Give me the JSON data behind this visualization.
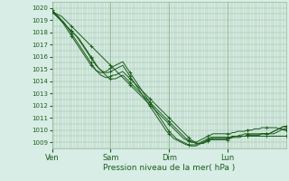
{
  "title": "",
  "xlabel": "Pression niveau de la mer( hPa )",
  "ylabel": "",
  "bg_color": "#d8ede6",
  "grid_color": "#99bb99",
  "line_color": "#1a5c1a",
  "marker_color": "#1a5c1a",
  "ylim": [
    1008.5,
    1020.5
  ],
  "yticks": [
    1009,
    1010,
    1011,
    1012,
    1013,
    1014,
    1015,
    1016,
    1017,
    1018,
    1019,
    1020
  ],
  "day_labels": [
    "Ven",
    "Sam",
    "Dim",
    "Lun"
  ],
  "day_positions": [
    0,
    48,
    96,
    144
  ],
  "xlim": [
    0,
    192
  ],
  "n_points": 97,
  "lines": [
    [
      1019.7,
      1019.6,
      1019.5,
      1019.4,
      1019.3,
      1019.1,
      1018.9,
      1018.7,
      1018.5,
      1018.3,
      1018.1,
      1017.9,
      1017.7,
      1017.5,
      1017.3,
      1017.1,
      1016.9,
      1016.7,
      1016.5,
      1016.3,
      1016.1,
      1015.9,
      1015.7,
      1015.5,
      1015.3,
      1015.1,
      1014.9,
      1014.7,
      1014.5,
      1014.3,
      1014.1,
      1013.9,
      1013.7,
      1013.5,
      1013.3,
      1013.1,
      1012.9,
      1012.7,
      1012.5,
      1012.3,
      1012.1,
      1011.9,
      1011.7,
      1011.5,
      1011.3,
      1011.1,
      1010.9,
      1010.7,
      1010.5,
      1010.3,
      1010.1,
      1009.9,
      1009.7,
      1009.5,
      1009.3,
      1009.2,
      1009.1,
      1009.0,
      1009.0,
      1009.0,
      1009.1,
      1009.2,
      1009.3,
      1009.4,
      1009.5,
      1009.6,
      1009.7,
      1009.7,
      1009.7,
      1009.7,
      1009.7,
      1009.7,
      1009.7,
      1009.7,
      1009.8,
      1009.8,
      1009.9,
      1009.9,
      1009.9,
      1009.9,
      1010.0,
      1010.0,
      1010.0,
      1010.1,
      1010.1,
      1010.1,
      1010.2,
      1010.2,
      1010.2,
      1010.2,
      1010.2,
      1010.2,
      1010.2,
      1010.1,
      1010.1,
      1010.0,
      1010.0
    ],
    [
      1019.7,
      1019.5,
      1019.3,
      1019.1,
      1018.9,
      1018.7,
      1018.5,
      1018.3,
      1018.1,
      1017.9,
      1017.7,
      1017.5,
      1017.2,
      1016.9,
      1016.6,
      1016.3,
      1016.0,
      1015.7,
      1015.4,
      1015.1,
      1014.9,
      1014.7,
      1014.5,
      1014.3,
      1014.2,
      1014.2,
      1014.2,
      1014.3,
      1014.4,
      1014.5,
      1014.3,
      1014.1,
      1013.9,
      1013.7,
      1013.5,
      1013.3,
      1013.1,
      1012.9,
      1012.7,
      1012.5,
      1012.3,
      1012.1,
      1011.9,
      1011.7,
      1011.5,
      1011.3,
      1011.1,
      1010.9,
      1010.7,
      1010.5,
      1010.3,
      1010.1,
      1009.9,
      1009.7,
      1009.5,
      1009.3,
      1009.2,
      1009.1,
      1009.0,
      1008.9,
      1008.9,
      1008.9,
      1009.0,
      1009.1,
      1009.2,
      1009.3,
      1009.4,
      1009.4,
      1009.4,
      1009.4,
      1009.4,
      1009.4,
      1009.4,
      1009.4,
      1009.5,
      1009.5,
      1009.5,
      1009.5,
      1009.5,
      1009.5,
      1009.5,
      1009.5,
      1009.5,
      1009.5,
      1009.5,
      1009.5,
      1009.5,
      1009.5,
      1009.5,
      1009.5,
      1009.5,
      1009.5,
      1009.5,
      1009.5,
      1009.5,
      1009.5,
      1009.5
    ],
    [
      1019.8,
      1019.6,
      1019.4,
      1019.2,
      1019.0,
      1018.8,
      1018.5,
      1018.2,
      1017.9,
      1017.6,
      1017.3,
      1017.0,
      1016.7,
      1016.4,
      1016.1,
      1015.8,
      1015.5,
      1015.2,
      1014.9,
      1014.7,
      1014.5,
      1014.4,
      1014.3,
      1014.3,
      1014.4,
      1014.5,
      1014.5,
      1014.6,
      1014.7,
      1014.8,
      1014.6,
      1014.4,
      1014.2,
      1014.0,
      1013.8,
      1013.6,
      1013.4,
      1013.2,
      1013.0,
      1012.8,
      1012.6,
      1012.4,
      1012.2,
      1012.0,
      1011.8,
      1011.6,
      1011.4,
      1011.2,
      1011.0,
      1010.8,
      1010.6,
      1010.4,
      1010.2,
      1010.0,
      1009.8,
      1009.6,
      1009.4,
      1009.2,
      1009.1,
      1009.0,
      1008.9,
      1008.9,
      1008.9,
      1009.0,
      1009.1,
      1009.2,
      1009.3,
      1009.3,
      1009.3,
      1009.3,
      1009.3,
      1009.3,
      1009.3,
      1009.4,
      1009.4,
      1009.5,
      1009.5,
      1009.6,
      1009.6,
      1009.7,
      1009.7,
      1009.7,
      1009.7,
      1009.7,
      1009.7,
      1009.7,
      1009.7,
      1009.7,
      1009.7,
      1009.7,
      1009.7,
      1009.7,
      1009.8,
      1009.9,
      1010.0,
      1010.1,
      1010.1
    ],
    [
      1019.7,
      1019.5,
      1019.3,
      1019.1,
      1018.9,
      1018.7,
      1018.5,
      1018.3,
      1018.1,
      1017.9,
      1017.7,
      1017.4,
      1017.1,
      1016.8,
      1016.5,
      1016.2,
      1015.9,
      1015.6,
      1015.3,
      1015.1,
      1014.9,
      1014.8,
      1014.7,
      1014.7,
      1014.8,
      1014.9,
      1015.0,
      1015.1,
      1015.2,
      1015.3,
      1015.0,
      1014.7,
      1014.4,
      1014.1,
      1013.8,
      1013.5,
      1013.2,
      1012.9,
      1012.6,
      1012.3,
      1012.0,
      1011.7,
      1011.4,
      1011.1,
      1010.8,
      1010.5,
      1010.2,
      1009.9,
      1009.7,
      1009.5,
      1009.3,
      1009.2,
      1009.1,
      1009.0,
      1008.9,
      1008.8,
      1008.8,
      1008.8,
      1008.8,
      1008.8,
      1008.9,
      1009.0,
      1009.1,
      1009.2,
      1009.3,
      1009.4,
      1009.4,
      1009.4,
      1009.4,
      1009.4,
      1009.4,
      1009.4,
      1009.4,
      1009.4,
      1009.5,
      1009.5,
      1009.5,
      1009.5,
      1009.5,
      1009.5,
      1009.6,
      1009.6,
      1009.6,
      1009.6,
      1009.6,
      1009.6,
      1009.7,
      1009.7,
      1009.7,
      1009.7,
      1009.8,
      1009.9,
      1010.0,
      1010.1,
      1010.2,
      1010.3,
      1010.3
    ],
    [
      1019.8,
      1019.6,
      1019.4,
      1019.2,
      1018.9,
      1018.6,
      1018.3,
      1018.0,
      1017.7,
      1017.4,
      1017.1,
      1016.8,
      1016.5,
      1016.2,
      1015.9,
      1015.6,
      1015.3,
      1015.1,
      1014.9,
      1014.8,
      1014.7,
      1014.7,
      1014.8,
      1014.9,
      1015.1,
      1015.2,
      1015.3,
      1015.4,
      1015.5,
      1015.6,
      1015.3,
      1015.0,
      1014.7,
      1014.4,
      1014.1,
      1013.8,
      1013.5,
      1013.2,
      1012.9,
      1012.6,
      1012.3,
      1012.0,
      1011.7,
      1011.4,
      1011.1,
      1010.8,
      1010.5,
      1010.2,
      1009.9,
      1009.7,
      1009.5,
      1009.3,
      1009.2,
      1009.1,
      1009.0,
      1008.9,
      1008.8,
      1008.7,
      1008.7,
      1008.7,
      1008.8,
      1008.9,
      1009.0,
      1009.1,
      1009.2,
      1009.2,
      1009.2,
      1009.2,
      1009.2,
      1009.2,
      1009.2,
      1009.2,
      1009.2,
      1009.3,
      1009.4,
      1009.4,
      1009.4,
      1009.4,
      1009.5,
      1009.5,
      1009.5,
      1009.6,
      1009.6,
      1009.6,
      1009.6,
      1009.6,
      1009.7,
      1009.7,
      1009.7,
      1009.7,
      1009.8,
      1009.9,
      1010.0,
      1010.1,
      1010.2,
      1010.3,
      1010.3
    ]
  ]
}
